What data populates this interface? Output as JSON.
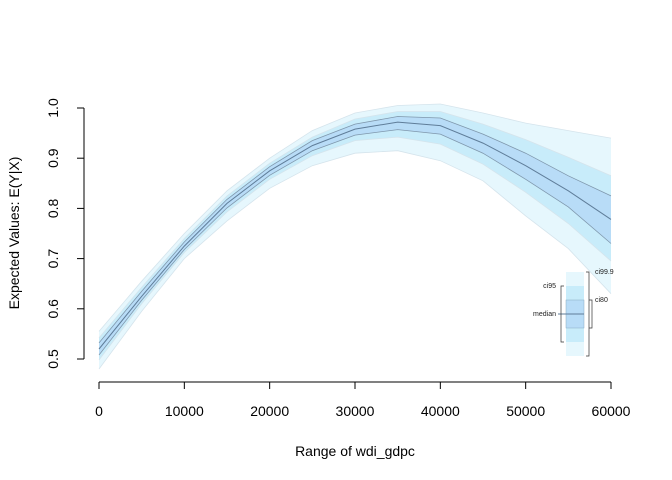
{
  "chart_data": {
    "type": "area",
    "title": "",
    "xlabel": "Range of wdi_gdpc",
    "ylabel": "Expected Values: E(Y|X)",
    "xlim": [
      0,
      60000
    ],
    "ylim": [
      0.5,
      1.0
    ],
    "x_ticks": [
      "0",
      "10000",
      "20000",
      "30000",
      "40000",
      "50000",
      "60000"
    ],
    "y_ticks": [
      "0.5",
      "0.6",
      "0.7",
      "0.8",
      "0.9",
      "1.0"
    ],
    "grid": false,
    "x": [
      0,
      5000,
      10000,
      15000,
      20000,
      25000,
      30000,
      35000,
      40000,
      45000,
      50000,
      55000,
      60000
    ],
    "median": [
      0.52,
      0.625,
      0.725,
      0.81,
      0.875,
      0.925,
      0.958,
      0.972,
      0.965,
      0.93,
      0.885,
      0.835,
      0.778
    ],
    "bands": [
      {
        "name": "ci99.9",
        "lower": [
          0.48,
          0.595,
          0.7,
          0.775,
          0.84,
          0.885,
          0.91,
          0.915,
          0.895,
          0.855,
          0.785,
          0.72,
          0.63
        ],
        "upper": [
          0.555,
          0.655,
          0.75,
          0.835,
          0.9,
          0.955,
          0.99,
          1.005,
          1.008,
          0.99,
          0.97,
          0.955,
          0.94
        ]
      },
      {
        "name": "ci95",
        "lower": [
          0.498,
          0.61,
          0.712,
          0.793,
          0.858,
          0.905,
          0.935,
          0.942,
          0.928,
          0.888,
          0.832,
          0.77,
          0.695
        ],
        "upper": [
          0.542,
          0.643,
          0.74,
          0.825,
          0.89,
          0.942,
          0.978,
          0.993,
          0.993,
          0.968,
          0.937,
          0.902,
          0.865
        ]
      },
      {
        "name": "ci80",
        "lower": [
          0.508,
          0.617,
          0.718,
          0.801,
          0.866,
          0.915,
          0.946,
          0.957,
          0.948,
          0.91,
          0.858,
          0.803,
          0.73
        ],
        "upper": [
          0.532,
          0.635,
          0.733,
          0.818,
          0.883,
          0.935,
          0.968,
          0.983,
          0.98,
          0.948,
          0.91,
          0.865,
          0.825
        ]
      }
    ],
    "colors": {
      "ci99.9": "#e6f7fd",
      "ci95": "#c8ecfa",
      "ci80": "#b8dcf7",
      "median": "#5f7d99",
      "edge": "#d5e4ec"
    },
    "legend": {
      "placement": "bottom-right",
      "labels": {
        "ci999": "ci99.9",
        "ci95": "ci95",
        "ci80": "ci80",
        "median": "median"
      }
    }
  }
}
